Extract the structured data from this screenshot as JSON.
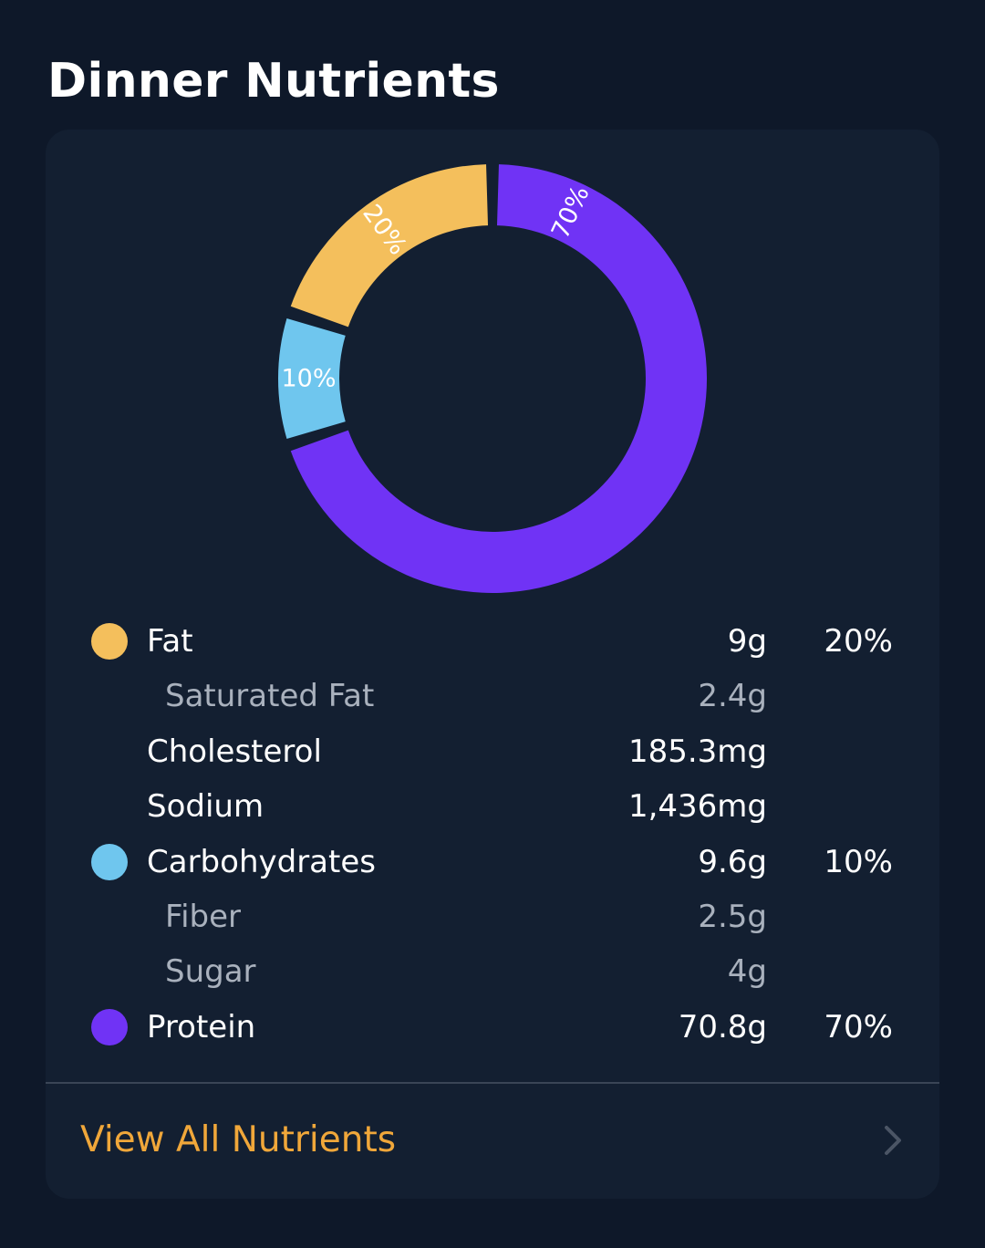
{
  "title": "Dinner Nutrients",
  "chart_data": {
    "type": "pie",
    "variant": "donut",
    "slices": [
      {
        "label": "Protein",
        "value": 70,
        "display": "70%",
        "color": "#7033f5"
      },
      {
        "label": "Carbohydrates",
        "value": 10,
        "display": "10%",
        "color": "#6fc6ee"
      },
      {
        "label": "Fat",
        "value": 20,
        "display": "20%",
        "color": "#f4bf5c"
      }
    ]
  },
  "nutrients": [
    {
      "label": "Fat",
      "amount": "9g",
      "percent": "20%",
      "color": "#f4bf5c",
      "sub": false
    },
    {
      "label": "Saturated Fat",
      "amount": "2.4g",
      "sub": true
    },
    {
      "label": "Cholesterol",
      "amount": "185.3mg",
      "sub": false
    },
    {
      "label": "Sodium",
      "amount": "1,436mg",
      "sub": false
    },
    {
      "label": "Carbohydrates",
      "amount": "9.6g",
      "percent": "10%",
      "color": "#6fc6ee",
      "sub": false
    },
    {
      "label": "Fiber",
      "amount": "2.5g",
      "sub": true
    },
    {
      "label": "Sugar",
      "amount": "4g",
      "sub": true
    },
    {
      "label": "Protein",
      "amount": "70.8g",
      "percent": "70%",
      "color": "#7033f5",
      "sub": false
    }
  ],
  "footer": {
    "link_label": "View All Nutrients",
    "icon": "chevron-right-icon"
  },
  "colors": {
    "background": "#0e1829",
    "card": "#131f31",
    "accent": "#f0a73a"
  }
}
